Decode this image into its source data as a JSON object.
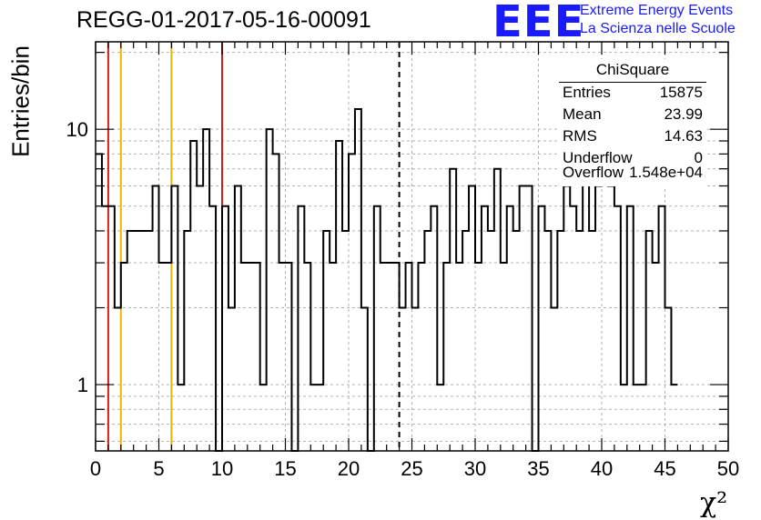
{
  "chart_data": {
    "type": "histogram",
    "title": "REGG-01-2017-05-16-00091",
    "xlabel": "χ²",
    "ylabel": "Entries/bin",
    "xlim": [
      0,
      50
    ],
    "ylim": [
      0.55,
      22
    ],
    "yscale": "log",
    "grid": true,
    "bin_width": 0.5,
    "x_ticks": [
      "0",
      "5",
      "10",
      "15",
      "20",
      "25",
      "30",
      "35",
      "40",
      "45",
      "50"
    ],
    "y_ticks": [
      "1",
      "10"
    ],
    "counts": [
      8,
      5,
      5,
      2,
      3,
      4,
      4,
      4,
      4,
      6,
      3,
      3,
      6,
      1,
      4,
      9,
      6,
      10,
      5,
      0,
      5,
      2,
      6,
      3,
      3,
      3,
      1,
      10,
      8,
      3,
      3,
      0,
      5,
      3,
      1,
      1,
      4,
      3,
      9,
      4,
      8,
      12,
      2,
      0,
      5,
      3,
      3,
      3,
      2,
      3,
      2,
      3,
      4,
      5,
      1,
      3,
      7,
      3,
      4,
      6,
      3,
      5,
      4,
      7,
      3,
      5,
      4,
      6,
      6,
      0,
      5,
      4,
      2,
      4,
      6,
      5,
      4,
      7,
      4,
      6,
      7,
      6,
      5,
      1,
      5,
      1,
      1,
      4,
      3,
      5,
      2,
      1
    ],
    "markers": [
      {
        "x": 1,
        "color": "#d21e1e",
        "style": "solid"
      },
      {
        "x": 2,
        "color": "#f0b400",
        "style": "solid"
      },
      {
        "x": 6,
        "color": "#f0b400",
        "style": "solid"
      },
      {
        "x": 10,
        "color": "#d21e1e",
        "style": "solid"
      },
      {
        "x": 24,
        "color": "#000000",
        "style": "dashed"
      }
    ]
  },
  "header": {
    "logo": "EEE",
    "brand_line1": "Extreme Energy Events",
    "brand_line2": "La Scienza nelle Scuole"
  },
  "stats": {
    "title": "ChiSquare",
    "rows": [
      {
        "label": "Entries",
        "value": "15875"
      },
      {
        "label": "Mean",
        "value": "23.99"
      },
      {
        "label": "RMS",
        "value": "14.63"
      },
      {
        "label": "Underflow",
        "value": "0"
      },
      {
        "label": "Overflow",
        "value": "1.548e+04"
      }
    ]
  }
}
